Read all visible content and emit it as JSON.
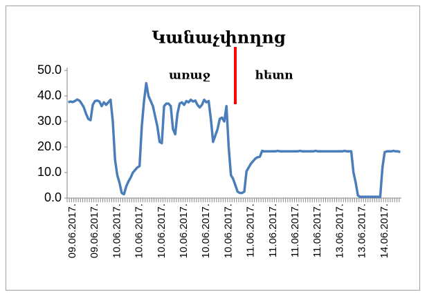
{
  "chart_data": {
    "type": "line",
    "title": "Կանաչփողոց",
    "annotations": [
      "առաջ",
      "հետո"
    ],
    "categories": [
      null,
      null,
      "09.06.2017.",
      null,
      null,
      null,
      null,
      null,
      null,
      null,
      null,
      null,
      "09.06.2017.",
      null,
      null,
      null,
      null,
      null,
      null,
      null,
      null,
      null,
      "10.06.2017.",
      null,
      null,
      null,
      null,
      null,
      null,
      null,
      null,
      null,
      "10.06.2017.",
      null,
      null,
      null,
      null,
      null,
      null,
      null,
      null,
      null,
      "10.06.2017.",
      null,
      null,
      null,
      null,
      null,
      null,
      null,
      null,
      null,
      "10.06.2017.",
      null,
      null,
      null,
      null,
      null,
      null,
      null,
      null,
      null,
      "10.06.2017.",
      null,
      null,
      null,
      null,
      null,
      null,
      null,
      null,
      null,
      "10.06.2017.",
      null,
      null,
      null,
      null,
      null,
      null,
      null,
      null,
      null,
      "11.06.2017.",
      null,
      null,
      null,
      null,
      null,
      null,
      null,
      null,
      null,
      "11.06.2017.",
      null,
      null,
      null,
      null,
      null,
      null,
      null,
      null,
      null,
      "11.06.2017.",
      null,
      null,
      null,
      null,
      null,
      null,
      null,
      null,
      null,
      "11.06.2017.",
      null,
      null,
      null,
      null,
      null,
      null,
      null,
      null,
      null,
      "13.06.2017.",
      null,
      null,
      null,
      null,
      null,
      null,
      null,
      null,
      null,
      "13.06.2017.",
      null,
      null,
      null,
      null,
      null,
      null,
      null,
      null,
      null,
      "14.06.2017.",
      null,
      null,
      null,
      null,
      null,
      null,
      null
    ],
    "series": [
      {
        "color": "#4a7ebb",
        "values": [
          37.5,
          37.8,
          37.6,
          38.0,
          38.6,
          38.2,
          37.0,
          35.5,
          33.0,
          31.0,
          30.5,
          36.5,
          38.0,
          38.2,
          37.8,
          36.0,
          37.5,
          36.5,
          37.5,
          38.5,
          30.0,
          15.0,
          9.0,
          6.0,
          2.0,
          1.5,
          4.5,
          6.5,
          8.0,
          10.0,
          11.0,
          12.0,
          12.5,
          28.0,
          38.0,
          45.0,
          40.0,
          38.0,
          36.0,
          32.0,
          28.0,
          22.0,
          21.5,
          36.0,
          37.0,
          37.0,
          36.0,
          27.0,
          25.0,
          33.0,
          37.0,
          37.5,
          36.5,
          38.0,
          37.5,
          38.5,
          37.8,
          38.2,
          36.5,
          35.5,
          36.5,
          38.5,
          37.5,
          38.0,
          31.0,
          22.0,
          24.5,
          27.0,
          31.0,
          31.5,
          30.0,
          36.0,
          20.0,
          9.0,
          7.5,
          5.0,
          2.5,
          2.0,
          2.0,
          2.5,
          10.5,
          12.0,
          13.5,
          14.5,
          15.5,
          16.0,
          16.2,
          18.5,
          18.3,
          18.3,
          18.3,
          18.3,
          18.3,
          18.3,
          18.5,
          18.3,
          18.3,
          18.3,
          18.3,
          18.3,
          18.3,
          18.3,
          18.3,
          18.3,
          18.5,
          18.3,
          18.3,
          18.3,
          18.3,
          18.3,
          18.3,
          18.5,
          18.3,
          18.3,
          18.3,
          18.3,
          18.3,
          18.3,
          18.3,
          18.3,
          18.3,
          18.3,
          18.3,
          18.3,
          18.5,
          18.3,
          18.3,
          18.3,
          10.0,
          6.0,
          1.0,
          0.5,
          0.5,
          0.5,
          0.5,
          0.5,
          0.5,
          0.5,
          0.5,
          0.5,
          0.5,
          12.0,
          18.0,
          18.3,
          18.3,
          18.3,
          18.5,
          18.3,
          18.3,
          18.0
        ]
      }
    ],
    "marker_color": "#ff0000",
    "ylim": [
      0,
      50
    ],
    "yticks": [
      {
        "value": 0,
        "label": "0.0"
      },
      {
        "value": 10,
        "label": "10.0"
      },
      {
        "value": 20,
        "label": "20.0"
      },
      {
        "value": 30,
        "label": "30.0"
      },
      {
        "value": 40,
        "label": "40.0"
      },
      {
        "value": 50,
        "label": "50.0"
      }
    ],
    "grid": false
  }
}
